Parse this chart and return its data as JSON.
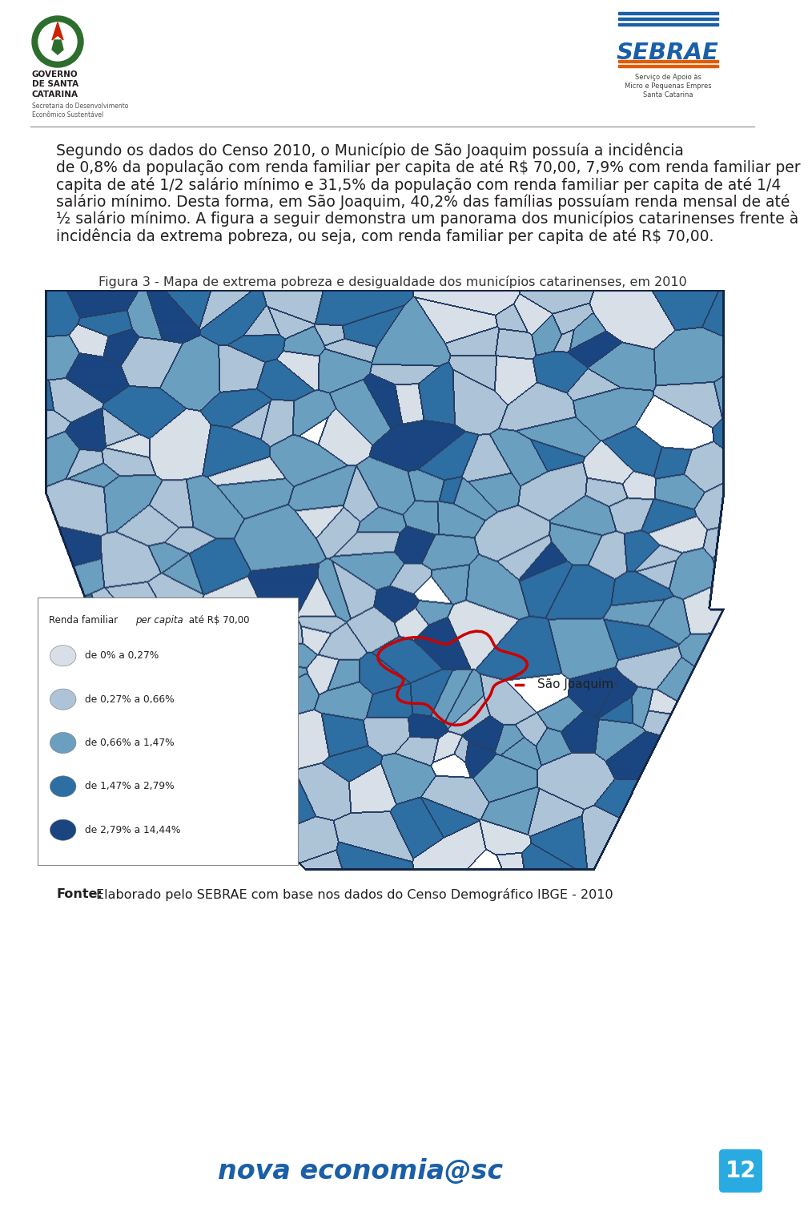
{
  "bg_color": "#ffffff",
  "text_color": "#231f20",
  "page_number": "12",
  "page_number_bg": "#29abe2",
  "figure_caption": "Figura 3 - Mapa de extrema pobreza e desigualdade dos municípios catarinenses, em 2010",
  "source_bold": "Fonte:",
  "source_rest": " Elaborado pelo SEBRAE com base nos dados do Censo Demográfico IBGE - 2010",
  "legend_title": "Renda familiar per capita até R$ 70,00",
  "legend_labels": [
    "de 0% a 0,27%",
    "de 0,27% a 0,66%",
    "de 0,66% a 1,47%",
    "de 1,47% a 2,79%",
    "de 2,79% a 14,44%"
  ],
  "legend_colors": [
    "#d8dfe8",
    "#adc4d8",
    "#6b9fc0",
    "#2e6fa3",
    "#1a4580"
  ],
  "sj_label": "São Joaquim",
  "map_bg": "#ffffff",
  "paragraph_lines": [
    "Segundo os dados do Censo 2010, o Município de São Joaquim possuía a incidência",
    "de 0,8% da população com renda familiar per capita de até R$ 70,00, 7,9% com renda familiar per",
    "capita de até 1/2 salário mínimo e 31,5% da população com renda familiar per capita de até 1/4",
    "salário mínimo. Desta forma, em São Joaquim, 40,2% das famílias possuíam renda mensal de até",
    "½ salário mínimo. A figura a seguir demonstra um panorama dos municípios catarinenses frente à",
    "incidência da extrema pobreza, ou seja, com renda familiar per capita de até R$ 70,00."
  ],
  "text_font_size": 13.5,
  "caption_font_size": 11.5,
  "source_font_size": 11.5
}
